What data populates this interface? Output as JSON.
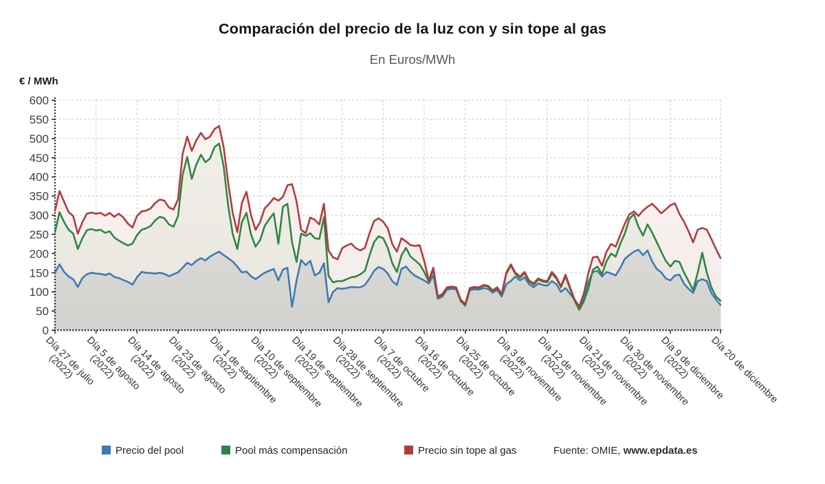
{
  "header": {
    "title": "Comparación del precio de la luz con y sin tope al gas",
    "subtitle": "En Euros/MWh"
  },
  "y_axis_label": "€ / MWh",
  "legend": {
    "items": [
      {
        "label": "Precio del pool",
        "color": "#3e7ab4"
      },
      {
        "label": "Pool más compensación",
        "color": "#2f8540"
      },
      {
        "label": "Precio sin tope al gas",
        "color": "#b23b3d"
      }
    ],
    "source_prefix": "Fuente: OMIE, ",
    "source_site": "www.epdata.es"
  },
  "chart_data": {
    "type": "line",
    "title": "Comparación del precio de la luz con y sin tope al gas",
    "subtitle": "En Euros/MWh",
    "ylabel": "€ / MWh",
    "ylim": [
      0,
      600
    ],
    "y_tick_step": 50,
    "grid": true,
    "legend_position": "bottom",
    "x_start": "2022-07-27",
    "x_end": "2022-12-20",
    "frequency": "daily",
    "x_tick_labels": [
      {
        "text": "Día 27 de julio",
        "year": "(2022)",
        "day_index": 0
      },
      {
        "text": "Día 5 de agosto",
        "year": "(2022)",
        "day_index": 9
      },
      {
        "text": "Día 14 de agosto",
        "year": "(2022)",
        "day_index": 18
      },
      {
        "text": "Día 23 de agosto",
        "year": "(2022)",
        "day_index": 27
      },
      {
        "text": "Día 1 de septiembre",
        "year": "(2022)",
        "day_index": 36
      },
      {
        "text": "Día 10 de septiembre",
        "year": "(2022)",
        "day_index": 45
      },
      {
        "text": "Día 19 de septiembre",
        "year": "(2022)",
        "day_index": 54
      },
      {
        "text": "Día 28 de septiembre",
        "year": "(2022)",
        "day_index": 63
      },
      {
        "text": "Día 7 de octubre",
        "year": "(2022)",
        "day_index": 72
      },
      {
        "text": "Día 16 de octubre",
        "year": "(2022)",
        "day_index": 81
      },
      {
        "text": "Día 25 de octubre",
        "year": "(2022)",
        "day_index": 90
      },
      {
        "text": "Día 3 de noviembre",
        "year": "(2022)",
        "day_index": 99
      },
      {
        "text": "Día 12 de noviembre",
        "year": "(2022)",
        "day_index": 108
      },
      {
        "text": "Día 21 de noviembre",
        "year": "(2022)",
        "day_index": 117
      },
      {
        "text": "Día 30 de noviembre",
        "year": "(2022)",
        "day_index": 126
      },
      {
        "text": "Día 9 de diciembre",
        "year": "(2022)",
        "day_index": 135
      },
      {
        "text": "Día 20 de diciembre",
        "year": "",
        "day_index": 146
      }
    ],
    "series": [
      {
        "name": "Precio del pool",
        "color": "#3e7ab4",
        "area_fill": {
          "top": "#e9e7e3",
          "bottom": "#d2d1cd"
        },
        "values": [
          150,
          172,
          152,
          140,
          133,
          113,
          136,
          146,
          150,
          148,
          147,
          144,
          148,
          139,
          136,
          131,
          126,
          119,
          138,
          152,
          150,
          149,
          148,
          150,
          147,
          141,
          146,
          151,
          163,
          176,
          170,
          181,
          188,
          182,
          192,
          199,
          205,
          196,
          188,
          179,
          166,
          151,
          153,
          141,
          133,
          142,
          150,
          155,
          160,
          130,
          158,
          163,
          61,
          130,
          183,
          170,
          181,
          143,
          150,
          175,
          73,
          100,
          110,
          108,
          110,
          113,
          112,
          112,
          118,
          135,
          155,
          165,
          160,
          148,
          128,
          118,
          160,
          166,
          152,
          142,
          136,
          130,
          122,
          143,
          82,
          88,
          106,
          108,
          107,
          76,
          64,
          104,
          107,
          106,
          110,
          108,
          98,
          105,
          88,
          120,
          128,
          140,
          130,
          138,
          120,
          112,
          122,
          118,
          116,
          128,
          120,
          100,
          110,
          95,
          80,
          58,
          85,
          125,
          152,
          155,
          140,
          152,
          148,
          143,
          162,
          186,
          196,
          205,
          210,
          196,
          208,
          180,
          160,
          151,
          135,
          130,
          143,
          145,
          121,
          108,
          97,
          128,
          133,
          128,
          97,
          80,
          66
        ]
      },
      {
        "name": "Pool más compensación",
        "color": "#2f8540",
        "area_fill": {
          "top": "#f3f0ea",
          "bottom": "#e8e5df"
        },
        "values": [
          256,
          308,
          282,
          262,
          252,
          212,
          240,
          261,
          264,
          260,
          262,
          254,
          258,
          242,
          234,
          227,
          221,
          226,
          248,
          262,
          266,
          272,
          287,
          296,
          292,
          276,
          270,
          298,
          405,
          452,
          395,
          432,
          458,
          438,
          448,
          478,
          487,
          428,
          325,
          250,
          212,
          282,
          306,
          250,
          218,
          235,
          272,
          290,
          305,
          226,
          322,
          330,
          230,
          178,
          252,
          246,
          253,
          240,
          238,
          295,
          142,
          125,
          128,
          128,
          133,
          138,
          140,
          146,
          155,
          195,
          230,
          245,
          240,
          215,
          175,
          152,
          195,
          215,
          192,
          182,
          172,
          152,
          127,
          158,
          85,
          92,
          110,
          112,
          110,
          78,
          66,
          108,
          111,
          110,
          116,
          114,
          102,
          110,
          93,
          147,
          169,
          147,
          137,
          149,
          127,
          119,
          132,
          127,
          125,
          148,
          135,
          112,
          141,
          108,
          77,
          53,
          75,
          108,
          158,
          166,
          146,
          180,
          200,
          192,
          225,
          252,
          290,
          303,
          270,
          247,
          276,
          255,
          230,
          205,
          181,
          166,
          181,
          178,
          150,
          128,
          104,
          150,
          202,
          150,
          112,
          88,
          77
        ]
      },
      {
        "name": "Precio sin tope al gas",
        "color": "#b23b3d",
        "area_fill": {
          "top": "#fbf6f5",
          "bottom": "#f3eae8"
        },
        "values": [
          312,
          363,
          335,
          308,
          298,
          252,
          282,
          304,
          307,
          304,
          306,
          299,
          306,
          296,
          304,
          294,
          278,
          268,
          298,
          310,
          312,
          318,
          332,
          341,
          338,
          320,
          315,
          342,
          460,
          505,
          468,
          495,
          515,
          498,
          505,
          525,
          533,
          478,
          385,
          305,
          256,
          332,
          361,
          300,
          262,
          282,
          318,
          330,
          345,
          338,
          348,
          378,
          381,
          336,
          262,
          253,
          294,
          288,
          276,
          330,
          208,
          190,
          185,
          214,
          221,
          226,
          214,
          208,
          215,
          253,
          285,
          292,
          283,
          266,
          225,
          205,
          240,
          232,
          222,
          220,
          222,
          181,
          130,
          163,
          88,
          95,
          112,
          114,
          112,
          80,
          68,
          110,
          113,
          112,
          118,
          116,
          104,
          112,
          95,
          150,
          172,
          150,
          140,
          152,
          130,
          122,
          135,
          130,
          128,
          152,
          138,
          115,
          145,
          112,
          80,
          62,
          95,
          148,
          190,
          192,
          168,
          205,
          225,
          218,
          248,
          278,
          302,
          310,
          298,
          312,
          322,
          330,
          318,
          305,
          315,
          326,
          331,
          303,
          283,
          258,
          229,
          262,
          267,
          262,
          238,
          212,
          188
        ]
      }
    ]
  }
}
